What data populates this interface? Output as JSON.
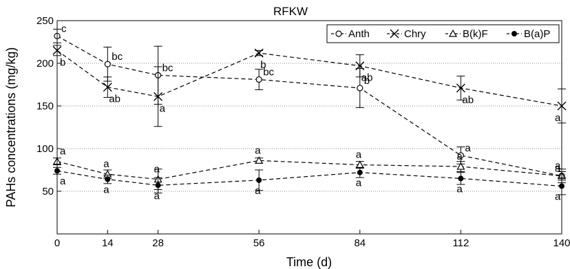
{
  "chart_data": {
    "type": "line",
    "title": "RFKW",
    "xlabel": "Time (d)",
    "ylabel": "PAHs concentrations (mg/kg)",
    "x": [
      0,
      14,
      28,
      56,
      84,
      112,
      140
    ],
    "xticks": [
      "0",
      "14",
      "28",
      "56",
      "84",
      "112",
      "140"
    ],
    "xlim": [
      0,
      140
    ],
    "ylim": [
      0,
      250
    ],
    "yticks": [
      "50",
      "100",
      "150",
      "200",
      "250"
    ],
    "grid": "horizontal dotted",
    "legend_position": "top-right",
    "series": [
      {
        "name": "Anth",
        "marker": "open-circle",
        "values": [
          232,
          199,
          186,
          181,
          171,
          92,
          68
        ],
        "errors": [
          8,
          20,
          34,
          12,
          23,
          10,
          8
        ],
        "labels": [
          "c",
          "bc",
          "bc",
          "bc",
          "b",
          "a",
          "a"
        ]
      },
      {
        "name": "Chry",
        "marker": "x",
        "values": [
          215,
          172,
          161,
          212,
          197,
          171,
          150
        ],
        "errors": [
          6,
          12,
          35,
          3,
          13,
          14,
          20
        ],
        "labels": [
          "b",
          "ab",
          "a",
          "b",
          "ab",
          "ab",
          "a"
        ]
      },
      {
        "name": "B(k)F",
        "marker": "open-triangle",
        "values": [
          85,
          70,
          64,
          86,
          81,
          79,
          68
        ],
        "errors": [
          4,
          5,
          12,
          3,
          4,
          6,
          5
        ],
        "labels": [
          "a",
          "a",
          "a",
          "a",
          "a",
          "a",
          "a"
        ]
      },
      {
        "name": "B(a)P",
        "marker": "filled-circle",
        "values": [
          74,
          64,
          57,
          63,
          72,
          65,
          56
        ],
        "errors": [
          4,
          5,
          9,
          12,
          6,
          7,
          10
        ],
        "labels": [
          "a",
          "a",
          "a",
          "a",
          "a",
          "a",
          "a"
        ]
      }
    ]
  }
}
